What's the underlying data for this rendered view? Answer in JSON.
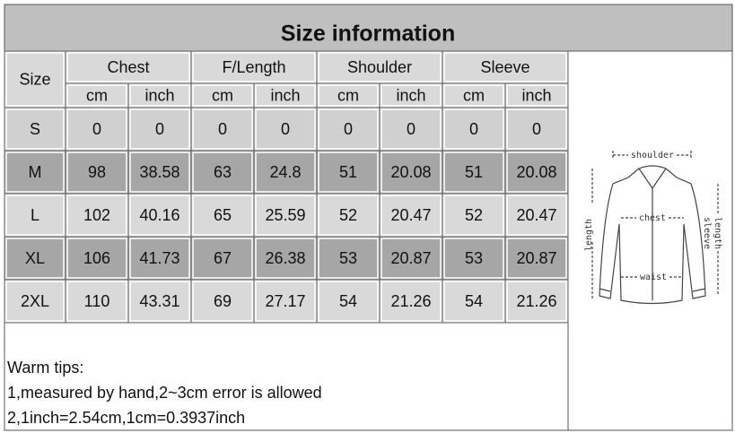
{
  "title": "Size information",
  "header": {
    "size": "Size",
    "groups": [
      "Chest",
      "F/Length",
      "Shoulder",
      "Sleeve"
    ],
    "units": [
      "cm",
      "inch"
    ]
  },
  "rows": [
    [
      "S",
      0,
      0,
      0,
      0,
      0,
      0,
      0,
      0
    ],
    [
      "M",
      98,
      38.58,
      63,
      24.8,
      51,
      20.08,
      51,
      20.08
    ],
    [
      "L",
      102,
      40.16,
      65,
      25.59,
      52,
      20.47,
      52,
      20.47
    ],
    [
      "XL",
      106,
      41.73,
      67,
      26.38,
      53,
      20.87,
      53,
      20.87
    ],
    [
      "2XL",
      110,
      43.31,
      69,
      27.17,
      54,
      21.26,
      54,
      21.26
    ]
  ],
  "tips": [
    "Warm tips:",
    "1,measured by hand,2~3cm error is allowed",
    "2,1inch=2.54cm,1cm=0.3937inch"
  ],
  "diagram": {
    "shoulder": "shoulder",
    "chest": "chest",
    "waist": "waist",
    "length": "length",
    "sleeve_length": [
      "sleeve",
      "length"
    ]
  }
}
